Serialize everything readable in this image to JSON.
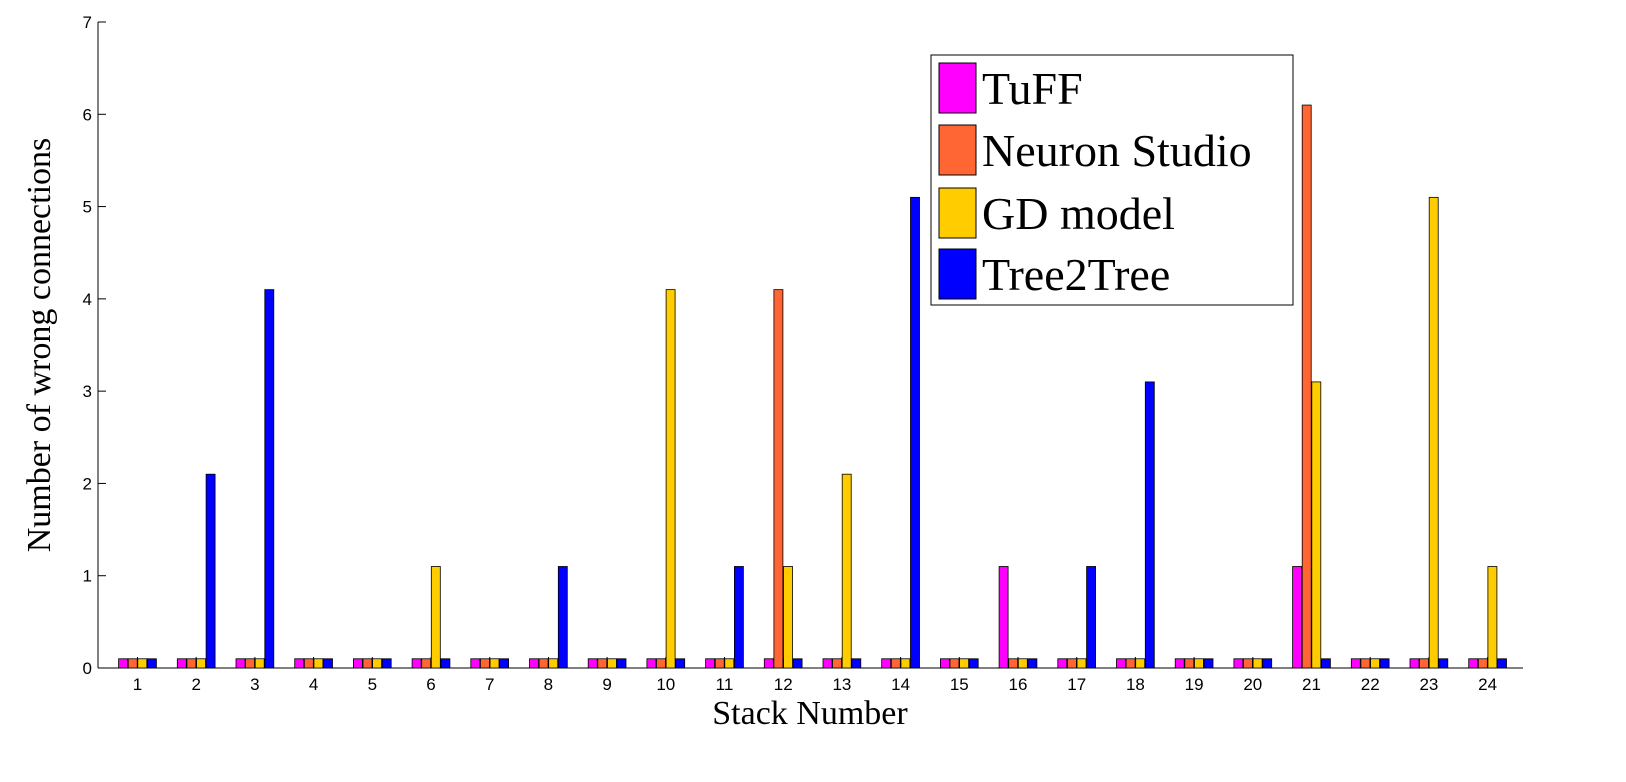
{
  "chart_data": {
    "type": "bar",
    "xlabel": "Stack Number",
    "ylabel": "Number of wrong connections",
    "ylim": [
      0,
      7
    ],
    "yticks": [
      "0",
      "1",
      "2",
      "3",
      "4",
      "5",
      "6",
      "7"
    ],
    "categories": [
      "1",
      "2",
      "3",
      "4",
      "5",
      "6",
      "7",
      "8",
      "9",
      "10",
      "11",
      "12",
      "13",
      "14",
      "15",
      "16",
      "17",
      "18",
      "19",
      "20",
      "21",
      "22",
      "23",
      "24"
    ],
    "legend_position": "top-right",
    "series": [
      {
        "name": "TuFF",
        "color": "#ff00ff",
        "values": [
          0.1,
          0.1,
          0.1,
          0.1,
          0.1,
          0.1,
          0.1,
          0.1,
          0.1,
          0.1,
          0.1,
          0.1,
          0.1,
          0.1,
          0.1,
          1.1,
          0.1,
          0.1,
          0.1,
          0.1,
          1.1,
          0.1,
          0.1,
          0.1
        ]
      },
      {
        "name": "Neuron Studio",
        "color": "#ff6633",
        "values": [
          0.1,
          0.1,
          0.1,
          0.1,
          0.1,
          0.1,
          0.1,
          0.1,
          0.1,
          0.1,
          0.1,
          4.1,
          0.1,
          0.1,
          0.1,
          0.1,
          0.1,
          0.1,
          0.1,
          0.1,
          6.1,
          0.1,
          0.1,
          0.1
        ]
      },
      {
        "name": "GD model",
        "color": "#ffcc00",
        "values": [
          0.1,
          0.1,
          0.1,
          0.1,
          0.1,
          1.1,
          0.1,
          0.1,
          0.1,
          4.1,
          0.1,
          1.1,
          2.1,
          0.1,
          0.1,
          0.1,
          0.1,
          0.1,
          0.1,
          0.1,
          3.1,
          0.1,
          5.1,
          1.1
        ]
      },
      {
        "name": "Tree2Tree",
        "color": "#0000ff",
        "values": [
          0.1,
          2.1,
          4.1,
          0.1,
          0.1,
          0.1,
          0.1,
          1.1,
          0.1,
          0.1,
          1.1,
          0.1,
          0.1,
          5.1,
          0.1,
          0.1,
          1.1,
          3.1,
          0.1,
          0.1,
          0.1,
          0.1,
          0.1,
          0.1
        ]
      }
    ]
  }
}
